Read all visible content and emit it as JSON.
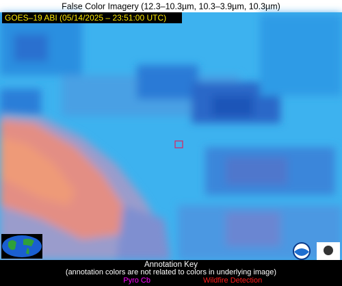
{
  "header": {
    "title": "False Color Imagery (12.3–10.3µm, 10.3–3.9µm, 10.3µm)"
  },
  "image": {
    "timestamp_label": "GOES–19 ABI (05/14/2025 – 23:51:00 UTC)"
  },
  "annotation_key": {
    "title": "Annotation Key",
    "note": "(annotation colors are not related to colors in underlying image)",
    "items": [
      "Pyro Cb",
      "Wildfire Detection"
    ]
  }
}
